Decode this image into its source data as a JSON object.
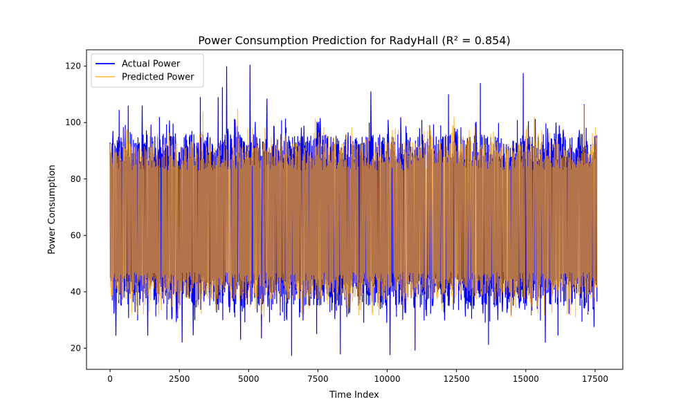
{
  "chart_data": {
    "type": "line",
    "title": "Power Consumption Prediction for RadyHall (R² = 0.854)",
    "xlabel": "Time Index",
    "ylabel": "Power Consumption",
    "xlim": [
      -850,
      18500
    ],
    "ylim": [
      12.5,
      125.8
    ],
    "xticks": [
      0,
      2500,
      5000,
      7500,
      10000,
      12500,
      15000,
      17500
    ],
    "yticks": [
      20,
      40,
      60,
      80,
      100,
      120
    ],
    "legend_position": "upper-left",
    "grid": false,
    "n_points": 17568,
    "series": [
      {
        "name": "Actual Power",
        "color": "#0000ff",
        "typical_range": [
          35,
          96
        ],
        "extremes": [
          {
            "x": 50,
            "y": 84
          },
          {
            "x": 100,
            "y": 97
          },
          {
            "x": 200,
            "y": 24.4
          },
          {
            "x": 320,
            "y": 104.5
          },
          {
            "x": 650,
            "y": 106
          },
          {
            "x": 1150,
            "y": 106
          },
          {
            "x": 1350,
            "y": 24.5
          },
          {
            "x": 2600,
            "y": 22
          },
          {
            "x": 3000,
            "y": 24.6
          },
          {
            "x": 3250,
            "y": 109
          },
          {
            "x": 3900,
            "y": 109
          },
          {
            "x": 4050,
            "y": 112.5
          },
          {
            "x": 4200,
            "y": 120
          },
          {
            "x": 4700,
            "y": 23
          },
          {
            "x": 5050,
            "y": 120.5
          },
          {
            "x": 5450,
            "y": 23.5
          },
          {
            "x": 5650,
            "y": 108.5
          },
          {
            "x": 6550,
            "y": 17.3
          },
          {
            "x": 7450,
            "y": 25
          },
          {
            "x": 8300,
            "y": 17.8
          },
          {
            "x": 9400,
            "y": 111
          },
          {
            "x": 10100,
            "y": 17.6
          },
          {
            "x": 11000,
            "y": 19.2
          },
          {
            "x": 12200,
            "y": 110
          },
          {
            "x": 13350,
            "y": 114
          },
          {
            "x": 13650,
            "y": 21.2
          },
          {
            "x": 14900,
            "y": 117.5
          },
          {
            "x": 15700,
            "y": 22
          },
          {
            "x": 16150,
            "y": 24.5
          },
          {
            "x": 17100,
            "y": 106.5
          },
          {
            "x": 17450,
            "y": 27.5
          }
        ]
      },
      {
        "name": "Predicted Power",
        "color": "#ffa500",
        "typical_range": [
          37,
          93
        ],
        "extremes": [
          {
            "x": 3350,
            "y": 104
          },
          {
            "x": 4600,
            "y": 105
          },
          {
            "x": 7400,
            "y": 101.5
          },
          {
            "x": 12400,
            "y": 102
          },
          {
            "x": 15300,
            "y": 102
          },
          {
            "x": 17100,
            "y": 106.2
          },
          {
            "x": 1200,
            "y": 32
          },
          {
            "x": 9700,
            "y": 31.5
          },
          {
            "x": 16500,
            "y": 32
          }
        ]
      }
    ]
  }
}
